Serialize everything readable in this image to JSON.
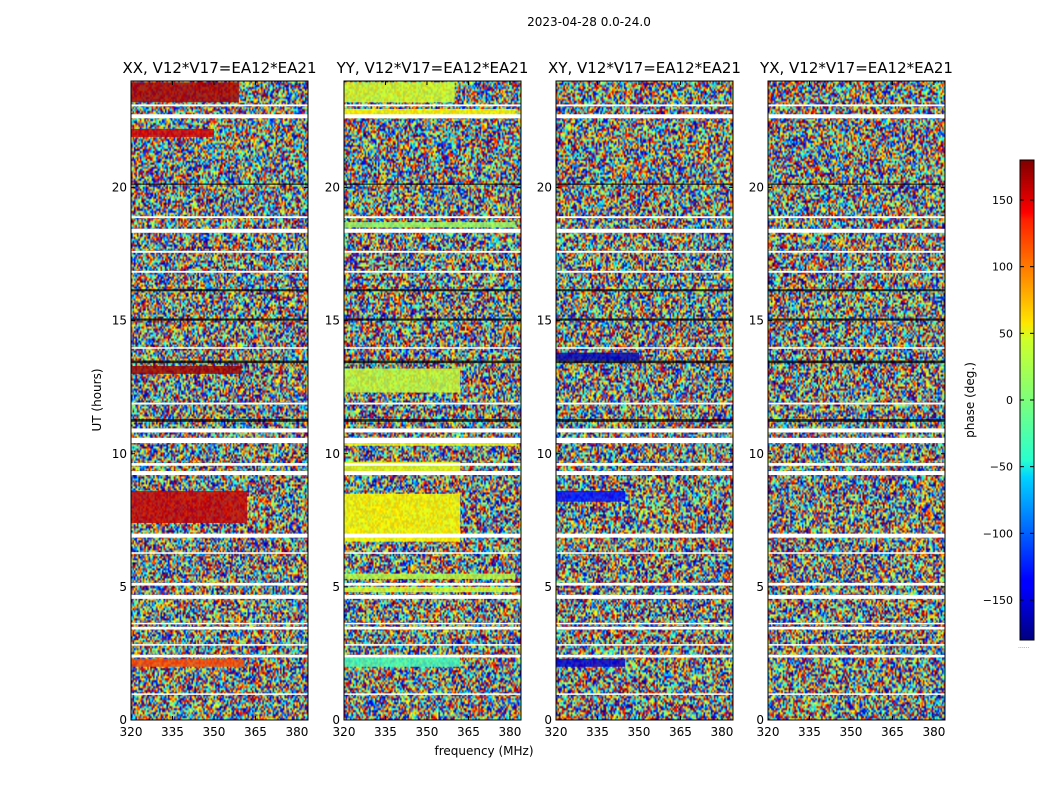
{
  "figure": {
    "suptitle": "2023-04-28 0.0-24.0",
    "colorbar_footnote": "......"
  },
  "colors": {
    "background": "#ffffff",
    "frame": "#000000",
    "gap": "#ffffff",
    "stripe_dark": "#000000"
  },
  "colormap": "jet",
  "chart_data": [
    {
      "type": "heatmap",
      "title": "XX, V12*V17=EA12*EA21",
      "xlabel": "",
      "ylabel": "UT (hours)",
      "xlim": [
        320,
        384
      ],
      "ylim": [
        0,
        24
      ],
      "xticks": [
        320,
        335,
        350,
        365,
        380
      ],
      "yticks": [
        0,
        5,
        10,
        15,
        20
      ],
      "zlabel": "phase (deg.)",
      "zlim": [
        -180,
        180
      ],
      "coherent_bands": [
        {
          "t0": 23.2,
          "t1": 23.95,
          "f0": 320,
          "f1": 359,
          "phase": 165
        },
        {
          "t0": 21.9,
          "t1": 22.2,
          "f0": 320,
          "f1": 350,
          "phase": 150
        },
        {
          "t0": 13.0,
          "t1": 13.3,
          "f0": 320,
          "f1": 360,
          "phase": 170
        },
        {
          "t0": 7.4,
          "t1": 8.6,
          "f0": 320,
          "f1": 362,
          "phase": 155
        },
        {
          "t0": 2.0,
          "t1": 2.3,
          "f0": 320,
          "f1": 361,
          "phase": 110
        }
      ],
      "blank_rows": [
        [
          0.97,
          1.0
        ],
        [
          2.35,
          2.45
        ],
        [
          2.8,
          2.85
        ],
        [
          3.4,
          3.5
        ],
        [
          3.6,
          3.65
        ],
        [
          4.55,
          4.7
        ],
        [
          5.05,
          5.15
        ],
        [
          6.25,
          6.3
        ],
        [
          6.85,
          7.0
        ],
        [
          9.2,
          9.35
        ],
        [
          9.55,
          9.65
        ],
        [
          10.4,
          10.6
        ],
        [
          10.8,
          10.95
        ],
        [
          11.85,
          11.92
        ],
        [
          13.95,
          14.0
        ],
        [
          16.8,
          16.87
        ],
        [
          17.55,
          17.62
        ],
        [
          18.3,
          18.45
        ],
        [
          18.85,
          18.92
        ],
        [
          22.6,
          22.75
        ],
        [
          23.05,
          23.12
        ]
      ],
      "dark_rows": [
        [
          13.4,
          13.5
        ],
        [
          15.0,
          15.08
        ],
        [
          16.1,
          16.18
        ],
        [
          11.2,
          11.3
        ],
        [
          20.1,
          20.15
        ]
      ]
    },
    {
      "type": "heatmap",
      "title": "YY, V12*V17=EA12*EA21",
      "xlabel": "frequency (MHz)",
      "ylabel": "",
      "xlim": [
        320,
        384
      ],
      "ylim": [
        0,
        24
      ],
      "xticks": [
        320,
        335,
        350,
        365,
        380
      ],
      "yticks": [
        0,
        5,
        10,
        15,
        20
      ],
      "zlabel": "phase (deg.)",
      "zlim": [
        -180,
        180
      ],
      "coherent_bands": [
        {
          "t0": 23.2,
          "t1": 23.95,
          "f0": 320,
          "f1": 360,
          "phase": 30
        },
        {
          "t0": 22.6,
          "t1": 22.95,
          "f0": 320,
          "f1": 382,
          "phase": 45
        },
        {
          "t0": 18.5,
          "t1": 18.7,
          "f0": 320,
          "f1": 382,
          "phase": 10
        },
        {
          "t0": 12.3,
          "t1": 13.2,
          "f0": 320,
          "f1": 362,
          "phase": 25
        },
        {
          "t0": 10.3,
          "t1": 10.6,
          "f0": 320,
          "f1": 382,
          "phase": 40
        },
        {
          "t0": 9.2,
          "t1": 9.7,
          "f0": 320,
          "f1": 362,
          "phase": 35
        },
        {
          "t0": 6.7,
          "t1": 8.5,
          "f0": 320,
          "f1": 362,
          "phase": 45
        },
        {
          "t0": 5.3,
          "t1": 5.5,
          "f0": 320,
          "f1": 382,
          "phase": 20
        },
        {
          "t0": 4.8,
          "t1": 5.0,
          "f0": 320,
          "f1": 382,
          "phase": 30
        },
        {
          "t0": 2.0,
          "t1": 2.35,
          "f0": 320,
          "f1": 362,
          "phase": -20
        }
      ],
      "blank_rows": [
        [
          0.97,
          1.0
        ],
        [
          2.35,
          2.45
        ],
        [
          2.8,
          2.85
        ],
        [
          3.4,
          3.5
        ],
        [
          3.6,
          3.65
        ],
        [
          4.55,
          4.7
        ],
        [
          5.05,
          5.15
        ],
        [
          6.25,
          6.3
        ],
        [
          6.85,
          7.0
        ],
        [
          9.2,
          9.35
        ],
        [
          9.55,
          9.65
        ],
        [
          10.4,
          10.6
        ],
        [
          10.8,
          10.95
        ],
        [
          11.85,
          11.92
        ],
        [
          13.95,
          14.0
        ],
        [
          16.8,
          16.87
        ],
        [
          17.55,
          17.62
        ],
        [
          18.3,
          18.45
        ],
        [
          18.85,
          18.92
        ],
        [
          22.6,
          22.75
        ],
        [
          23.05,
          23.12
        ]
      ],
      "dark_rows": [
        [
          13.4,
          13.5
        ],
        [
          15.0,
          15.08
        ],
        [
          16.1,
          16.18
        ],
        [
          11.2,
          11.3
        ],
        [
          20.1,
          20.15
        ]
      ]
    },
    {
      "type": "heatmap",
      "title": "XY, V12*V17=EA12*EA21",
      "xlabel": "",
      "ylabel": "",
      "xlim": [
        320,
        384
      ],
      "ylim": [
        0,
        24
      ],
      "xticks": [
        320,
        335,
        350,
        365,
        380
      ],
      "yticks": [
        0,
        5,
        10,
        15,
        20
      ],
      "zlabel": "phase (deg.)",
      "zlim": [
        -180,
        180
      ],
      "coherent_bands": [
        {
          "t0": 13.5,
          "t1": 13.8,
          "f0": 320,
          "f1": 350,
          "phase": -160
        },
        {
          "t0": 8.2,
          "t1": 8.6,
          "f0": 320,
          "f1": 345,
          "phase": -130
        },
        {
          "t0": 2.0,
          "t1": 2.3,
          "f0": 320,
          "f1": 345,
          "phase": -150
        }
      ],
      "blank_rows": [
        [
          0.97,
          1.0
        ],
        [
          2.35,
          2.45
        ],
        [
          2.8,
          2.85
        ],
        [
          3.4,
          3.5
        ],
        [
          3.6,
          3.65
        ],
        [
          4.55,
          4.7
        ],
        [
          5.05,
          5.15
        ],
        [
          6.25,
          6.3
        ],
        [
          6.85,
          7.0
        ],
        [
          9.2,
          9.35
        ],
        [
          9.55,
          9.65
        ],
        [
          10.4,
          10.6
        ],
        [
          10.8,
          10.95
        ],
        [
          11.85,
          11.92
        ],
        [
          13.95,
          14.0
        ],
        [
          16.8,
          16.87
        ],
        [
          17.55,
          17.62
        ],
        [
          18.3,
          18.45
        ],
        [
          18.85,
          18.92
        ],
        [
          22.6,
          22.75
        ],
        [
          23.05,
          23.12
        ]
      ],
      "dark_rows": [
        [
          13.4,
          13.5
        ],
        [
          15.0,
          15.08
        ],
        [
          16.1,
          16.18
        ],
        [
          11.2,
          11.3
        ],
        [
          20.1,
          20.15
        ]
      ]
    },
    {
      "type": "heatmap",
      "title": "YX, V12*V17=EA12*EA21",
      "xlabel": "",
      "ylabel": "",
      "xlim": [
        320,
        384
      ],
      "ylim": [
        0,
        24
      ],
      "xticks": [
        320,
        335,
        350,
        365,
        380
      ],
      "yticks": [
        0,
        5,
        10,
        15,
        20
      ],
      "zlabel": "phase (deg.)",
      "zlim": [
        -180,
        180
      ],
      "coherent_bands": [],
      "blank_rows": [
        [
          0.97,
          1.0
        ],
        [
          2.35,
          2.45
        ],
        [
          2.8,
          2.85
        ],
        [
          3.4,
          3.5
        ],
        [
          3.6,
          3.65
        ],
        [
          4.55,
          4.7
        ],
        [
          5.05,
          5.15
        ],
        [
          6.25,
          6.3
        ],
        [
          6.85,
          7.0
        ],
        [
          9.2,
          9.35
        ],
        [
          9.55,
          9.65
        ],
        [
          10.4,
          10.6
        ],
        [
          10.8,
          10.95
        ],
        [
          11.85,
          11.92
        ],
        [
          13.95,
          14.0
        ],
        [
          16.8,
          16.87
        ],
        [
          17.55,
          17.62
        ],
        [
          18.3,
          18.45
        ],
        [
          18.85,
          18.92
        ],
        [
          22.6,
          22.75
        ],
        [
          23.05,
          23.12
        ]
      ],
      "dark_rows": [
        [
          13.4,
          13.5
        ],
        [
          15.0,
          15.08
        ],
        [
          16.1,
          16.18
        ],
        [
          11.2,
          11.3
        ],
        [
          20.1,
          20.15
        ]
      ]
    }
  ],
  "colorbar": {
    "label": "phase (deg.)",
    "range": [
      -180,
      180
    ],
    "ticks": [
      150,
      100,
      50,
      0,
      -50,
      -100,
      -150
    ],
    "tick_labels": [
      "150",
      "100",
      "50",
      "0",
      "−50",
      "−100",
      "−150"
    ]
  }
}
